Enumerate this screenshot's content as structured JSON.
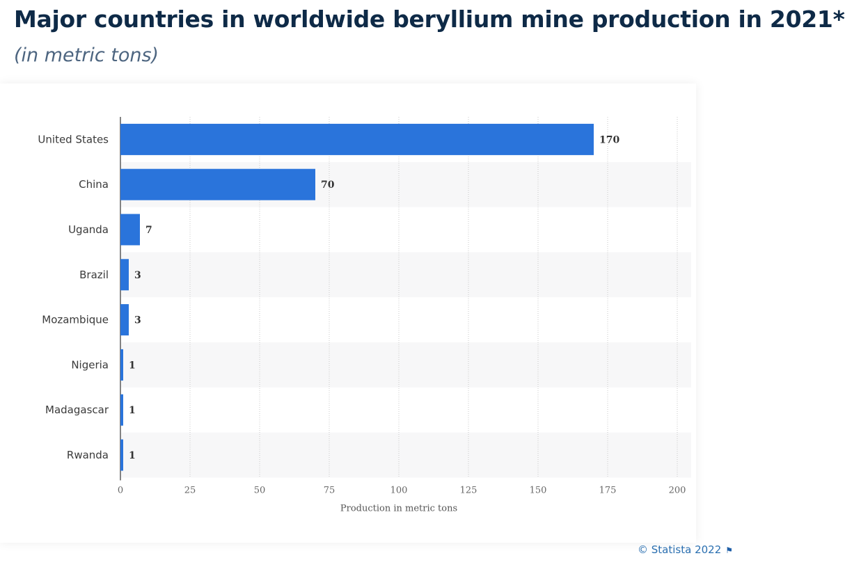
{
  "header": {
    "title": "Major countries in worldwide beryllium mine production in 2021*",
    "subtitle": "(in metric tons)"
  },
  "footer": {
    "credit": "© Statista 2022",
    "flag_icon": "flag-icon"
  },
  "colors": {
    "bar": "#2a74db",
    "title": "#0e2a47",
    "subtitle": "#4d6580",
    "stripe": "#f7f7f8",
    "credit": "#2a6fb0"
  },
  "chart_data": {
    "type": "bar",
    "orientation": "horizontal",
    "categories": [
      "United States",
      "China",
      "Uganda",
      "Brazil",
      "Mozambique",
      "Nigeria",
      "Madagascar",
      "Rwanda"
    ],
    "values": [
      170,
      70,
      7,
      3,
      3,
      1,
      1,
      1
    ],
    "xlabel": "Production in metric tons",
    "ylabel": "",
    "xlim": [
      0,
      200
    ],
    "xticks": [
      0,
      25,
      50,
      75,
      100,
      125,
      150,
      175,
      200
    ],
    "grid": "vertical dotted",
    "legend": "none"
  }
}
